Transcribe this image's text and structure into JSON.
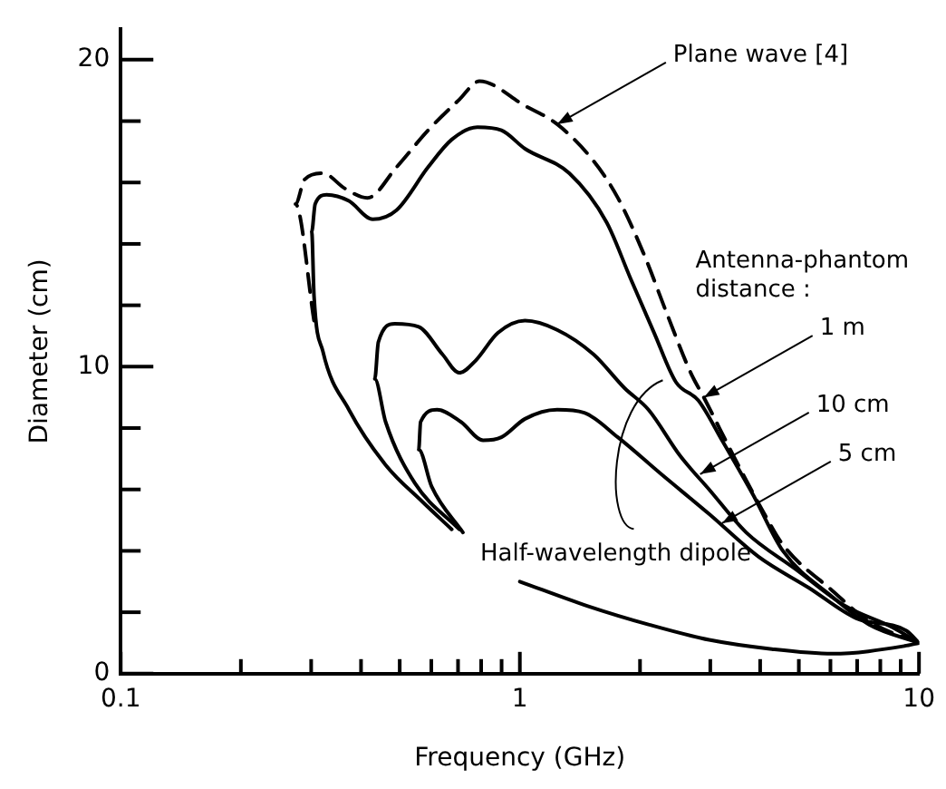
{
  "chart_data": {
    "type": "line",
    "xlabel": "Frequency (GHz)",
    "ylabel": "Diameter (cm)",
    "log": "x",
    "grid": false,
    "legend": false,
    "marker": "none",
    "xlim": [
      0.1,
      10
    ],
    "ylim": [
      0,
      21
    ],
    "xticks": [
      0.1,
      {
        "value": 0.2,
        "label": null
      },
      {
        "value": 0.3,
        "label": null
      },
      {
        "value": 0.4,
        "label": null
      },
      {
        "value": 0.5,
        "label": null
      },
      {
        "value": 0.6,
        "label": null
      },
      {
        "value": 0.7,
        "label": null
      },
      {
        "value": 0.8,
        "label": null
      },
      {
        "value": 0.9,
        "label": null
      },
      1,
      {
        "value": 2,
        "label": null
      },
      {
        "value": 3,
        "label": null
      },
      {
        "value": 4,
        "label": null
      },
      {
        "value": 5,
        "label": null
      },
      {
        "value": 6,
        "label": null
      },
      {
        "value": 7,
        "label": null
      },
      {
        "value": 8,
        "label": null
      },
      {
        "value": 9,
        "label": null
      },
      10
    ],
    "yticks": [
      0,
      {
        "value": 2,
        "label": null
      },
      {
        "value": 4,
        "label": null
      },
      {
        "value": 6,
        "label": null
      },
      {
        "value": 8,
        "label": null
      },
      10,
      {
        "value": 12,
        "label": null
      },
      {
        "value": 14,
        "label": null
      },
      {
        "value": 16,
        "label": null
      },
      {
        "value": 18,
        "label": null
      },
      20
    ],
    "series": [
      {
        "line_style": "dashed",
        "color": "#000000",
        "x": [
          0.305,
          0.274,
          0.289,
          0.321,
          0.365,
          0.415,
          0.491,
          0.589,
          0.705,
          0.792,
          1.03,
          1.24,
          1.53,
          1.76,
          2.04,
          2.34,
          2.68,
          2.89,
          3.46,
          4.1,
          4.56,
          6.07,
          7.5,
          10
        ],
        "values": [
          11.5,
          15.3,
          16.1,
          16.3,
          15.8,
          15.5,
          16.5,
          17.7,
          18.7,
          19.3,
          18.5,
          17.9,
          16.7,
          15.5,
          13.7,
          11.7,
          9.8,
          9.0,
          7.0,
          5.2,
          4.2,
          2.7,
          1.7,
          1.0
        ]
      },
      {
        "line_style": "solid",
        "color": "#000000",
        "x": [
          0.675,
          0.57,
          0.461,
          0.373,
          0.321,
          0.305,
          0.301,
          0.307,
          0.328,
          0.373,
          0.428,
          0.491,
          0.589,
          0.675,
          0.783,
          0.899,
          1.03,
          1.33,
          1.65,
          1.89,
          2.17,
          2.46,
          2.8,
          3.21,
          3.85,
          4.56,
          6.07,
          7.5,
          10
        ],
        "values": [
          4.7,
          5.6,
          6.8,
          8.6,
          10.5,
          12.3,
          14.4,
          15.3,
          15.6,
          15.4,
          14.8,
          15.1,
          16.5,
          17.4,
          17.8,
          17.7,
          17.1,
          16.3,
          14.7,
          12.9,
          11.1,
          9.5,
          8.9,
          7.6,
          5.8,
          4.0,
          2.5,
          1.6,
          1.0
        ]
      },
      {
        "line_style": "solid",
        "color": "#000000",
        "x": [
          0.705,
          0.546,
          0.461,
          0.433,
          0.442,
          0.486,
          0.558,
          0.64,
          0.705,
          0.775,
          0.881,
          1.03,
          1.24,
          1.53,
          1.83,
          2.1,
          2.52,
          2.98,
          3.69,
          4.91,
          6.54,
          8.6,
          10
        ],
        "values": [
          4.7,
          6.2,
          8.2,
          9.6,
          10.8,
          11.4,
          11.3,
          10.4,
          9.8,
          10.2,
          11.1,
          11.5,
          11.2,
          10.4,
          9.3,
          8.6,
          7.1,
          6.0,
          4.6,
          3.4,
          2.2,
          1.5,
          1.0
        ]
      },
      {
        "line_style": "solid",
        "color": "#000000",
        "x": [
          0.72,
          0.601,
          0.558,
          0.564,
          0.62,
          0.712,
          0.809,
          0.899,
          1.03,
          1.24,
          1.45,
          1.76,
          2.26,
          2.98,
          3.97,
          5.29,
          6.97,
          9.3,
          10
        ],
        "values": [
          4.6,
          6.1,
          7.3,
          8.2,
          8.6,
          8.2,
          7.6,
          7.7,
          8.3,
          8.6,
          8.5,
          7.7,
          6.5,
          5.2,
          3.8,
          2.8,
          1.8,
          1.4,
          1.0
        ]
      },
      {
        "line_style": "solid",
        "color": "#000000",
        "x": [
          1.0,
          1.48,
          2.1,
          2.98,
          4.28,
          6.07,
          9.2,
          10
        ],
        "values": [
          3.0,
          2.2,
          1.6,
          1.1,
          0.8,
          0.65,
          0.9,
          1.0
        ]
      }
    ],
    "annotations": [
      {
        "text": "Plane wave [4]",
        "x": 1.24,
        "y": 17.9
      },
      "Antenna-phantom\ndistance :",
      {
        "text": "1 m",
        "x": 2.89,
        "y": 9.0
      },
      {
        "text": "10 cm",
        "x": 2.83,
        "y": 6.5
      },
      {
        "text": "5 cm",
        "x": 3.21,
        "y": 4.9
      },
      "Half-wavelength dipole"
    ]
  }
}
